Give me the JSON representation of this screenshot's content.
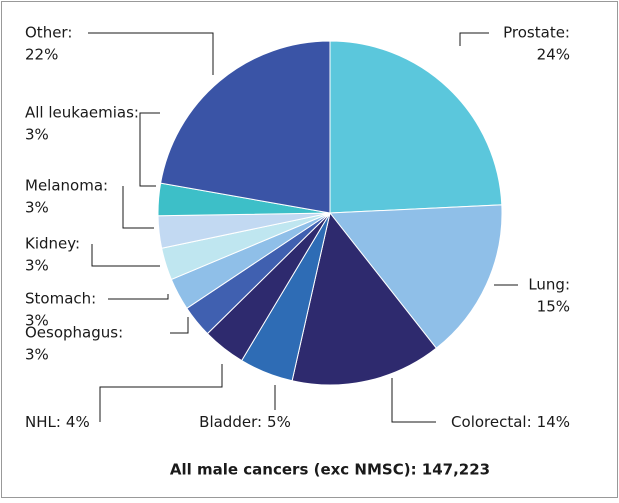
{
  "chart_data": {
    "type": "pie",
    "title": "All male cancers (exc NMSC): 147,223",
    "categories": [
      "Prostate:",
      "Lung:",
      "Colorectal:",
      "Bladder:",
      "NHL:",
      "Oesophagus:",
      "Stomach:",
      "Kidney:",
      "Melanoma:",
      "All leukaemias:",
      "Other:"
    ],
    "values": [
      24,
      15,
      14,
      5,
      4,
      3,
      3,
      3,
      3,
      3,
      22
    ],
    "value_labels": [
      "24%",
      "15%",
      "14%",
      "5%",
      "4%",
      "3%",
      "3%",
      "3%",
      "3%",
      "3%",
      "22%"
    ],
    "colors": [
      "#5bc7dc",
      "#8fbfe8",
      "#2e2a6e",
      "#2e6cb5",
      "#2e2a6e",
      "#4060b0",
      "#8fbfe8",
      "#bfe6f0",
      "#c2d9f2",
      "#3dbfc8",
      "#3a54a6"
    ]
  }
}
